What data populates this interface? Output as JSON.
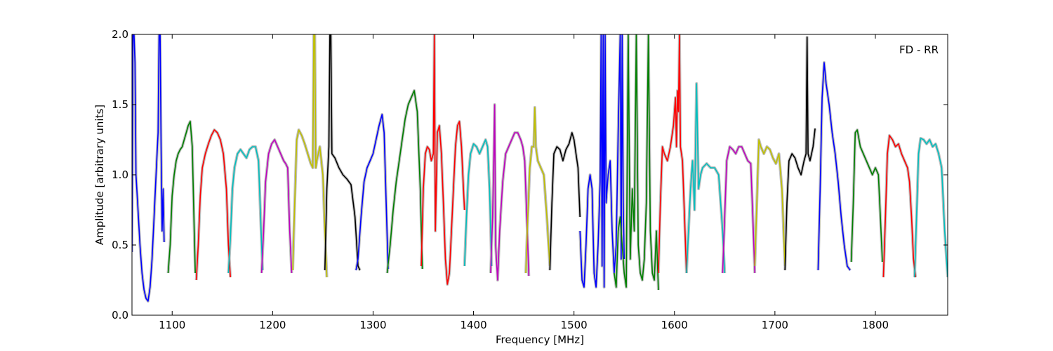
{
  "chart_data": {
    "type": "line",
    "title": "",
    "annotation": "FD - RR",
    "xlabel": "Frequency [MHz]",
    "ylabel": "Amplitude [arbitrary units]",
    "xlim": [
      1060,
      1872
    ],
    "ylim": [
      0.0,
      2.0
    ],
    "xticks": [
      1100,
      1200,
      1300,
      1400,
      1500,
      1600,
      1700,
      1800
    ],
    "yticks": [
      0.0,
      0.5,
      1.0,
      1.5,
      2.0
    ],
    "xtick_labels": [
      "1100",
      "1200",
      "1300",
      "1400",
      "1500",
      "1600",
      "1700",
      "1800"
    ],
    "ytick_labels": [
      "0.0",
      "0.5",
      "1.0",
      "1.5",
      "2.0"
    ],
    "grid": false,
    "background_color": "#bfbfbf",
    "palette": [
      "#0000ff",
      "#008000",
      "#ff0000",
      "#00bfbf",
      "#bf00bf",
      "#bfbf00",
      "#000000"
    ],
    "series": [
      {
        "color": "#0000ff",
        "x": [
          1060,
          1061,
          1062,
          1063,
          1064,
          1066,
          1068,
          1070,
          1072,
          1074,
          1076,
          1078,
          1080,
          1082,
          1084,
          1086,
          1087,
          1088,
          1089,
          1090,
          1091,
          1092
        ],
        "y": [
          0.45,
          2.0,
          2.0,
          1.8,
          1.0,
          0.75,
          0.5,
          0.3,
          0.18,
          0.12,
          0.1,
          0.2,
          0.4,
          0.7,
          1.0,
          1.3,
          2.0,
          2.0,
          1.2,
          0.6,
          0.9,
          0.52
        ]
      },
      {
        "color": "#008000",
        "x": [
          1096,
          1098,
          1100,
          1102,
          1104,
          1106,
          1108,
          1110,
          1112,
          1114,
          1116,
          1118,
          1120,
          1122,
          1123
        ],
        "y": [
          0.3,
          0.5,
          0.85,
          1.0,
          1.1,
          1.15,
          1.18,
          1.2,
          1.25,
          1.3,
          1.35,
          1.38,
          1.2,
          0.6,
          0.3
        ]
      },
      {
        "color": "#ff0000",
        "x": [
          1124,
          1126,
          1128,
          1130,
          1133,
          1136,
          1139,
          1142,
          1145,
          1148,
          1151,
          1154,
          1156,
          1158
        ],
        "y": [
          0.25,
          0.5,
          0.85,
          1.05,
          1.15,
          1.22,
          1.28,
          1.32,
          1.3,
          1.25,
          1.15,
          0.9,
          0.5,
          0.27
        ]
      },
      {
        "color": "#00bfbf",
        "x": [
          1156,
          1158,
          1160,
          1162,
          1165,
          1168,
          1171,
          1174,
          1177,
          1180,
          1183,
          1186,
          1188,
          1190
        ],
        "y": [
          0.3,
          0.55,
          0.9,
          1.05,
          1.15,
          1.18,
          1.15,
          1.12,
          1.18,
          1.2,
          1.2,
          1.1,
          0.7,
          0.32
        ]
      },
      {
        "color": "#bf00bf",
        "x": [
          1189,
          1191,
          1193,
          1196,
          1199,
          1202,
          1205,
          1208,
          1211,
          1213,
          1215,
          1217,
          1219
        ],
        "y": [
          0.3,
          0.6,
          0.95,
          1.15,
          1.22,
          1.25,
          1.2,
          1.15,
          1.1,
          1.08,
          1.05,
          0.6,
          0.3
        ]
      },
      {
        "color": "#bfbf00",
        "x": [
          1220,
          1222,
          1224,
          1226,
          1229,
          1232,
          1235,
          1238,
          1240,
          1241,
          1242,
          1243,
          1244,
          1247,
          1250,
          1252,
          1254
        ],
        "y": [
          0.32,
          0.8,
          1.25,
          1.32,
          1.28,
          1.22,
          1.15,
          1.08,
          1.05,
          2.0,
          2.0,
          1.05,
          1.1,
          1.2,
          1.0,
          0.6,
          0.27
        ]
      },
      {
        "color": "#000000",
        "x": [
          1252,
          1254,
          1256,
          1257,
          1258,
          1259,
          1262,
          1266,
          1270,
          1274,
          1278,
          1282,
          1285,
          1287
        ],
        "y": [
          0.32,
          0.9,
          1.2,
          2.0,
          2.0,
          1.15,
          1.12,
          1.05,
          1.0,
          0.97,
          0.93,
          0.7,
          0.35,
          0.32
        ]
      },
      {
        "color": "#0000ff",
        "x": [
          1283,
          1285,
          1288,
          1291,
          1294,
          1297,
          1300,
          1303,
          1306,
          1309,
          1311,
          1313,
          1315
        ],
        "y": [
          0.32,
          0.4,
          0.7,
          0.95,
          1.05,
          1.1,
          1.15,
          1.25,
          1.35,
          1.43,
          1.3,
          0.8,
          0.33
        ]
      },
      {
        "color": "#008000",
        "x": [
          1314,
          1317,
          1320,
          1323,
          1326,
          1329,
          1332,
          1335,
          1338,
          1341,
          1344,
          1347,
          1349
        ],
        "y": [
          0.3,
          0.5,
          0.75,
          0.95,
          1.1,
          1.25,
          1.4,
          1.5,
          1.55,
          1.6,
          1.45,
          0.9,
          0.33
        ]
      },
      {
        "color": "#ff0000",
        "x": [
          1348,
          1350,
          1352,
          1354,
          1356,
          1358,
          1360,
          1361,
          1362,
          1364,
          1366,
          1368,
          1370,
          1372,
          1374,
          1376,
          1378,
          1380,
          1382,
          1384,
          1386,
          1388,
          1390,
          1391
        ],
        "y": [
          0.35,
          0.9,
          1.15,
          1.2,
          1.18,
          1.1,
          1.15,
          2.0,
          0.6,
          1.3,
          1.35,
          1.15,
          0.8,
          0.4,
          0.22,
          0.3,
          0.6,
          0.9,
          1.2,
          1.35,
          1.38,
          1.2,
          0.9,
          0.75
        ]
      },
      {
        "color": "#00bfbf",
        "x": [
          1391,
          1393,
          1395,
          1397,
          1400,
          1403,
          1406,
          1409,
          1412,
          1414,
          1416,
          1418
        ],
        "y": [
          0.35,
          0.7,
          1.0,
          1.15,
          1.22,
          1.2,
          1.15,
          1.2,
          1.25,
          1.2,
          0.9,
          0.35
        ]
      },
      {
        "color": "#bf00bf",
        "x": [
          1417,
          1419,
          1420,
          1421,
          1422,
          1424,
          1426,
          1429,
          1432,
          1435,
          1438,
          1441,
          1444,
          1447,
          1449,
          1451,
          1453,
          1455
        ],
        "y": [
          0.3,
          0.7,
          1.05,
          1.5,
          0.5,
          0.25,
          0.6,
          0.95,
          1.15,
          1.2,
          1.25,
          1.3,
          1.3,
          1.25,
          1.2,
          1.1,
          0.7,
          0.28
        ]
      },
      {
        "color": "#bfbf00",
        "x": [
          1452,
          1454,
          1456,
          1458,
          1460,
          1461,
          1462,
          1464,
          1467,
          1470,
          1473,
          1476
        ],
        "y": [
          0.3,
          0.7,
          1.05,
          1.2,
          1.2,
          1.48,
          1.2,
          1.1,
          1.05,
          1.0,
          0.7,
          0.35
        ]
      },
      {
        "color": "#000000",
        "x": [
          1476,
          1478,
          1480,
          1483,
          1486,
          1489,
          1492,
          1495,
          1498,
          1500,
          1502,
          1504,
          1506
        ],
        "y": [
          0.32,
          0.8,
          1.15,
          1.2,
          1.18,
          1.1,
          1.18,
          1.22,
          1.3,
          1.25,
          1.15,
          1.05,
          0.7
        ]
      },
      {
        "color": "#0000ff",
        "x": [
          1506,
          1508,
          1510,
          1512,
          1514,
          1516,
          1518,
          1520,
          1522,
          1524,
          1526,
          1527,
          1528,
          1529,
          1530,
          1531,
          1532,
          1534,
          1536,
          1538,
          1540,
          1542,
          1544,
          1546,
          1547,
          1548,
          1549,
          1550
        ],
        "y": [
          0.6,
          0.25,
          0.2,
          0.5,
          0.9,
          1.0,
          0.9,
          0.3,
          0.2,
          0.5,
          0.95,
          2.0,
          0.35,
          2.0,
          0.2,
          2.0,
          0.8,
          1.0,
          1.1,
          0.6,
          0.3,
          0.5,
          1.3,
          2.0,
          0.4,
          2.0,
          0.8,
          0.4
        ]
      },
      {
        "color": "#008000",
        "x": [
          1540,
          1542,
          1544,
          1546,
          1548,
          1550,
          1552,
          1554,
          1556,
          1558,
          1560,
          1562,
          1564,
          1566,
          1568,
          1570,
          1572,
          1574,
          1576,
          1578,
          1580,
          1582,
          1584
        ],
        "y": [
          0.3,
          0.2,
          0.6,
          0.7,
          0.5,
          0.3,
          0.2,
          2.0,
          0.4,
          0.9,
          0.6,
          2.0,
          0.5,
          0.3,
          0.25,
          0.4,
          0.8,
          2.0,
          0.6,
          0.3,
          0.25,
          0.6,
          0.18
        ]
      },
      {
        "color": "#ff0000",
        "x": [
          1584,
          1586,
          1588,
          1590,
          1593,
          1596,
          1599,
          1601,
          1602,
          1603,
          1604,
          1605,
          1606,
          1608,
          1610,
          1612
        ],
        "y": [
          0.3,
          0.8,
          1.2,
          1.15,
          1.1,
          1.2,
          1.35,
          1.55,
          1.2,
          1.6,
          1.45,
          2.0,
          1.2,
          1.1,
          0.7,
          0.3
        ]
      },
      {
        "color": "#00bfbf",
        "x": [
          1612,
          1614,
          1616,
          1618,
          1620,
          1622,
          1624,
          1626,
          1628,
          1632,
          1636,
          1640,
          1644,
          1648,
          1650
        ],
        "y": [
          0.3,
          0.6,
          0.9,
          1.1,
          0.75,
          1.65,
          0.9,
          1.0,
          1.05,
          1.08,
          1.05,
          1.05,
          1.0,
          0.6,
          0.3
        ]
      },
      {
        "color": "#bf00bf",
        "x": [
          1648,
          1650,
          1652,
          1655,
          1658,
          1661,
          1664,
          1667,
          1670,
          1673,
          1676,
          1678,
          1680
        ],
        "y": [
          0.3,
          0.7,
          1.1,
          1.2,
          1.18,
          1.15,
          1.2,
          1.2,
          1.15,
          1.1,
          1.08,
          0.7,
          0.3
        ]
      },
      {
        "color": "#bfbf00",
        "x": [
          1680,
          1682,
          1684,
          1686,
          1689,
          1692,
          1695,
          1698,
          1701,
          1704,
          1707,
          1710
        ],
        "y": [
          0.35,
          0.8,
          1.25,
          1.2,
          1.15,
          1.2,
          1.18,
          1.12,
          1.08,
          1.15,
          0.9,
          0.35
        ]
      },
      {
        "color": "#000000",
        "x": [
          1710,
          1712,
          1714,
          1717,
          1720,
          1723,
          1726,
          1729,
          1731,
          1732,
          1733,
          1735,
          1738,
          1740
        ],
        "y": [
          0.32,
          0.8,
          1.1,
          1.15,
          1.12,
          1.05,
          1.0,
          1.1,
          1.15,
          1.98,
          1.15,
          1.1,
          1.2,
          1.33
        ]
      },
      {
        "color": "#0000ff",
        "x": [
          1743,
          1745,
          1747,
          1749,
          1751,
          1754,
          1757,
          1760,
          1763,
          1766,
          1769,
          1772,
          1775
        ],
        "y": [
          0.32,
          0.9,
          1.55,
          1.8,
          1.65,
          1.5,
          1.3,
          1.15,
          0.95,
          0.7,
          0.5,
          0.35,
          0.32
        ]
      },
      {
        "color": "#008000",
        "x": [
          1776,
          1778,
          1780,
          1782,
          1785,
          1788,
          1791,
          1794,
          1797,
          1800,
          1803,
          1805,
          1807
        ],
        "y": [
          0.38,
          0.8,
          1.3,
          1.32,
          1.2,
          1.15,
          1.1,
          1.05,
          1.0,
          1.05,
          1.0,
          0.7,
          0.38
        ]
      },
      {
        "color": "#ff0000",
        "x": [
          1808,
          1810,
          1812,
          1814,
          1817,
          1820,
          1823,
          1826,
          1829,
          1832,
          1834,
          1836,
          1838,
          1840
        ],
        "y": [
          0.27,
          0.7,
          1.15,
          1.28,
          1.25,
          1.2,
          1.22,
          1.15,
          1.1,
          1.05,
          0.95,
          0.7,
          0.4,
          0.27
        ]
      },
      {
        "color": "#00bfbf",
        "x": [
          1839,
          1841,
          1843,
          1845,
          1848,
          1851,
          1854,
          1857,
          1860,
          1863,
          1866,
          1869,
          1872
        ],
        "y": [
          0.27,
          0.7,
          1.15,
          1.26,
          1.25,
          1.22,
          1.25,
          1.2,
          1.22,
          1.15,
          1.05,
          0.6,
          0.27
        ]
      }
    ]
  }
}
